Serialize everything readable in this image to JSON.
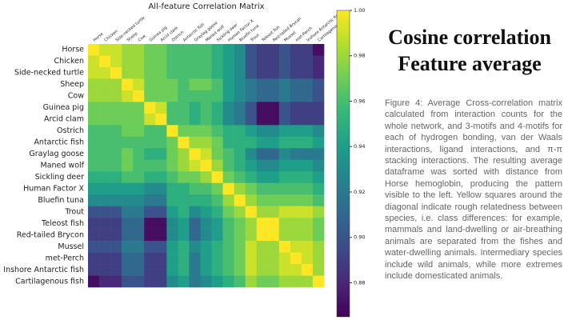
{
  "chart_data": {
    "type": "heatmap",
    "title": "All-feature Correlation Matrix",
    "colormap": "viridis",
    "categories": [
      "Horse",
      "Chicken",
      "Side-necked turtle",
      "Sheep",
      "Cow",
      "Guinea pig",
      "Arcid clam",
      "Ostrich",
      "Antarctic fish",
      "Graylag goose",
      "Maned wolf",
      "Sickling deer",
      "Human Factor X",
      "Bluefin tuna",
      "Trout",
      "Teleost fish",
      "Red-tailed Brycon",
      "Mussel",
      "met-Perch",
      "Inshore Antarctic fish",
      "Cartilagenous fish"
    ],
    "values": [
      [
        1,
        0.99,
        0.99,
        0.98,
        0.98,
        0.97,
        0.97,
        0.96,
        0.96,
        0.96,
        0.96,
        0.95,
        0.94,
        0.93,
        0.9,
        0.89,
        0.89,
        0.9,
        0.89,
        0.89,
        0.87
      ],
      [
        0.99,
        1,
        0.99,
        0.98,
        0.98,
        0.97,
        0.97,
        0.96,
        0.96,
        0.96,
        0.96,
        0.95,
        0.94,
        0.93,
        0.9,
        0.89,
        0.89,
        0.9,
        0.89,
        0.89,
        0.88
      ],
      [
        0.99,
        0.99,
        1,
        0.98,
        0.98,
        0.97,
        0.97,
        0.96,
        0.96,
        0.96,
        0.96,
        0.95,
        0.94,
        0.93,
        0.9,
        0.89,
        0.89,
        0.9,
        0.89,
        0.89,
        0.88
      ],
      [
        0.98,
        0.98,
        0.98,
        1,
        0.99,
        0.97,
        0.97,
        0.97,
        0.96,
        0.97,
        0.97,
        0.96,
        0.94,
        0.93,
        0.92,
        0.91,
        0.91,
        0.92,
        0.91,
        0.91,
        0.9
      ],
      [
        0.98,
        0.98,
        0.98,
        0.99,
        1,
        0.97,
        0.97,
        0.97,
        0.96,
        0.96,
        0.96,
        0.96,
        0.94,
        0.93,
        0.92,
        0.91,
        0.91,
        0.92,
        0.91,
        0.91,
        0.9
      ],
      [
        0.97,
        0.97,
        0.97,
        0.97,
        0.97,
        1,
        0.99,
        0.96,
        0.96,
        0.95,
        0.96,
        0.95,
        0.93,
        0.92,
        0.9,
        0.87,
        0.87,
        0.9,
        0.89,
        0.89,
        0.89
      ],
      [
        0.97,
        0.97,
        0.97,
        0.97,
        0.97,
        0.99,
        1,
        0.96,
        0.96,
        0.95,
        0.96,
        0.95,
        0.93,
        0.92,
        0.9,
        0.87,
        0.87,
        0.9,
        0.89,
        0.89,
        0.89
      ],
      [
        0.96,
        0.96,
        0.96,
        0.97,
        0.97,
        0.96,
        0.96,
        1,
        0.97,
        0.97,
        0.97,
        0.96,
        0.95,
        0.95,
        0.94,
        0.93,
        0.93,
        0.94,
        0.94,
        0.94,
        0.93
      ],
      [
        0.96,
        0.96,
        0.96,
        0.96,
        0.96,
        0.96,
        0.96,
        0.97,
        1,
        0.98,
        0.98,
        0.97,
        0.95,
        0.95,
        0.95,
        0.94,
        0.94,
        0.95,
        0.95,
        0.95,
        0.94
      ],
      [
        0.96,
        0.96,
        0.96,
        0.97,
        0.96,
        0.95,
        0.95,
        0.97,
        0.98,
        1,
        0.99,
        0.97,
        0.96,
        0.95,
        0.93,
        0.91,
        0.91,
        0.93,
        0.92,
        0.92,
        0.92
      ],
      [
        0.96,
        0.96,
        0.96,
        0.97,
        0.96,
        0.96,
        0.96,
        0.97,
        0.98,
        0.99,
        1,
        0.98,
        0.96,
        0.95,
        0.94,
        0.93,
        0.93,
        0.94,
        0.94,
        0.94,
        0.93
      ],
      [
        0.95,
        0.95,
        0.95,
        0.96,
        0.96,
        0.95,
        0.95,
        0.96,
        0.97,
        0.97,
        0.98,
        1,
        0.97,
        0.96,
        0.95,
        0.94,
        0.94,
        0.95,
        0.95,
        0.95,
        0.94
      ],
      [
        0.94,
        0.94,
        0.94,
        0.94,
        0.94,
        0.93,
        0.93,
        0.95,
        0.95,
        0.96,
        0.96,
        0.97,
        1,
        0.98,
        0.97,
        0.96,
        0.96,
        0.96,
        0.96,
        0.96,
        0.95
      ],
      [
        0.93,
        0.93,
        0.93,
        0.93,
        0.93,
        0.92,
        0.92,
        0.95,
        0.95,
        0.95,
        0.95,
        0.96,
        0.98,
        1,
        0.98,
        0.97,
        0.97,
        0.97,
        0.97,
        0.97,
        0.96
      ],
      [
        0.9,
        0.9,
        0.9,
        0.92,
        0.92,
        0.9,
        0.9,
        0.94,
        0.95,
        0.93,
        0.94,
        0.95,
        0.97,
        0.98,
        1,
        0.98,
        0.98,
        0.99,
        0.99,
        0.99,
        0.98
      ],
      [
        0.89,
        0.89,
        0.89,
        0.91,
        0.91,
        0.87,
        0.87,
        0.93,
        0.94,
        0.91,
        0.93,
        0.94,
        0.96,
        0.97,
        0.98,
        1,
        1,
        0.98,
        0.98,
        0.98,
        0.97
      ],
      [
        0.89,
        0.89,
        0.89,
        0.91,
        0.91,
        0.87,
        0.87,
        0.93,
        0.94,
        0.91,
        0.93,
        0.94,
        0.96,
        0.97,
        0.98,
        1,
        1,
        0.98,
        0.98,
        0.98,
        0.97
      ],
      [
        0.9,
        0.9,
        0.9,
        0.92,
        0.92,
        0.9,
        0.9,
        0.94,
        0.95,
        0.93,
        0.94,
        0.95,
        0.96,
        0.97,
        0.99,
        0.98,
        0.98,
        1,
        0.99,
        0.99,
        0.98
      ],
      [
        0.89,
        0.89,
        0.89,
        0.91,
        0.91,
        0.89,
        0.89,
        0.94,
        0.95,
        0.92,
        0.94,
        0.95,
        0.96,
        0.97,
        0.99,
        0.98,
        0.98,
        0.99,
        1,
        0.99,
        0.98
      ],
      [
        0.89,
        0.89,
        0.89,
        0.91,
        0.91,
        0.89,
        0.89,
        0.94,
        0.95,
        0.92,
        0.94,
        0.95,
        0.96,
        0.97,
        0.99,
        0.98,
        0.98,
        0.99,
        0.99,
        1,
        0.98
      ],
      [
        0.87,
        0.88,
        0.88,
        0.9,
        0.9,
        0.89,
        0.89,
        0.93,
        0.94,
        0.92,
        0.93,
        0.94,
        0.95,
        0.96,
        0.98,
        0.97,
        0.97,
        0.98,
        0.98,
        0.98,
        1
      ]
    ],
    "zlim": [
      0.865,
      1
    ],
    "zticks": [
      0.88,
      {
        "value": 0.9,
        "label": "0.90"
      },
      0.92,
      0.94,
      0.96,
      0.98,
      {
        "value": 1,
        "label": "1.00"
      }
    ]
  },
  "heading": [
    "Cosine correlation",
    "Feature average"
  ],
  "caption": "Figure 4: Average Cross-correlation matrix calculated from interaction counts for the whole network, and 3-motifs and 4-motifs for each of hydrogen bonding, van der Waals interactions, ligand interactions, and π-π stacking interactions. The resulting average dataframe was sorted with distance from Horse hemoglobin, producing the pattern visible to the left. Yellow squares around the diagonal indicate rough relatedness between species, i.e. class differences: for example, mammals and land-dwelling or air-breathing animals are separated from the fishes and water-dwelling animals. Intermediary species include wild animals, while more extremes include domesticated animals."
}
